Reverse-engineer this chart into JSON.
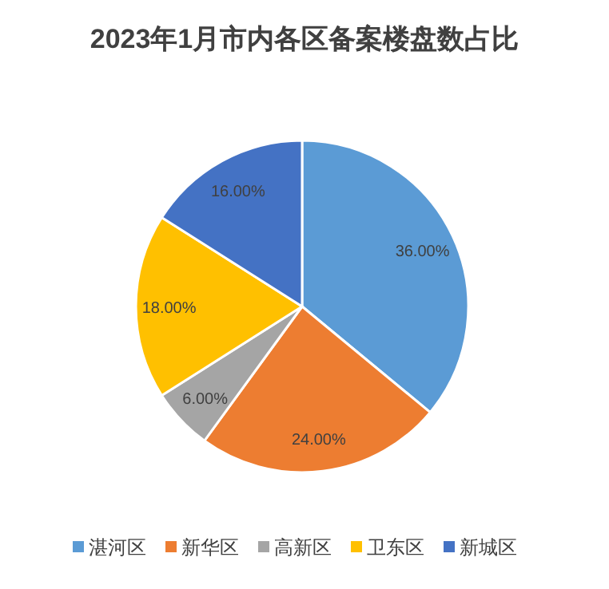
{
  "chart_data": {
    "type": "pie",
    "title": "2023年1月市内各区备案楼盘数占比",
    "categories": [
      "湛河区",
      "新华区",
      "高新区",
      "卫东区",
      "新城区"
    ],
    "values": [
      36,
      24,
      6,
      18,
      16
    ],
    "value_labels": [
      "36.00%",
      "24.00%",
      "6.00%",
      "18.00%",
      "16.00%"
    ],
    "colors": [
      "#5b9bd5",
      "#ed7d31",
      "#a5a5a5",
      "#ffc000",
      "#4472c4"
    ],
    "legend": "bottom"
  }
}
